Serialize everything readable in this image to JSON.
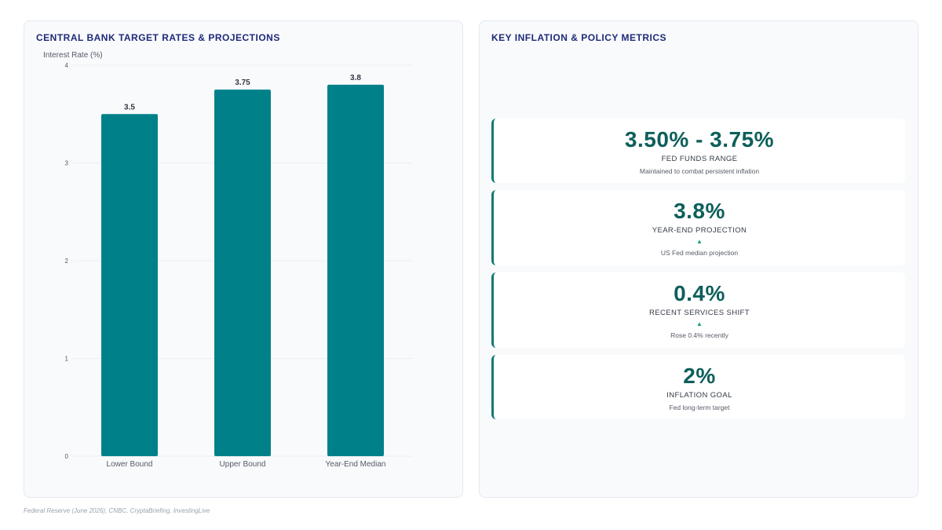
{
  "left_panel": {
    "title": "CENTRAL BANK TARGET RATES & PROJECTIONS"
  },
  "chart_data": {
    "type": "bar",
    "title": "CENTRAL BANK TARGET RATES & PROJECTIONS",
    "ylabel": "Interest Rate (%)",
    "xlabel": "",
    "categories": [
      "Lower Bound",
      "Upper Bound",
      "Year-End Median"
    ],
    "values": [
      3.5,
      3.75,
      3.8
    ],
    "ylim": [
      0,
      4
    ],
    "yticks": [
      0,
      1,
      2,
      3,
      4
    ],
    "grid": true,
    "bar_color": "#00818a"
  },
  "right_panel": {
    "title": "KEY INFLATION & POLICY METRICS",
    "cards": [
      {
        "value": "3.50% - 3.75%",
        "label": "FED FUNDS RANGE",
        "arrow": "",
        "sub": "Maintained to combat persistent inflation"
      },
      {
        "value": "3.8%",
        "label": "YEAR-END PROJECTION",
        "arrow": "▲",
        "sub": "US Fed median projection"
      },
      {
        "value": "0.4%",
        "label": "RECENT SERVICES SHIFT",
        "arrow": "▲",
        "sub": "Rose 0.4% recently"
      },
      {
        "value": "2%",
        "label": "INFLATION GOAL",
        "arrow": "",
        "sub": "Fed long-term target"
      }
    ]
  },
  "footer": {
    "source": "Federal Reserve (June 2026), CNBC, CryptaBriefing, InvestingLive"
  },
  "colors": {
    "accent": "#00818a",
    "title": "#1e2a78",
    "metric_value": "#0d5f5a",
    "up_arrow": "#1aa06d"
  }
}
